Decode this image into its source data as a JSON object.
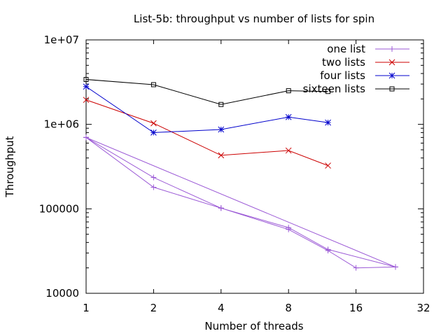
{
  "chart_data": {
    "type": "line",
    "title": "List-5b: throughput vs number of lists for spin",
    "xlabel": "Number of threads",
    "ylabel": "Throughput",
    "x_scale": "log2",
    "y_scale": "log10",
    "xlim": [
      1,
      32
    ],
    "ylim": [
      10000,
      10000000
    ],
    "x_ticks": [
      1,
      2,
      4,
      8,
      16,
      32
    ],
    "x_tick_labels": [
      "1",
      "2",
      "4",
      "8",
      "16",
      "32"
    ],
    "y_ticks": [
      10000,
      100000,
      1000000,
      10000000
    ],
    "y_tick_labels": [
      "10000",
      "100000",
      "1e+06",
      "1e+07"
    ],
    "grid": false,
    "legend_position": "top-right",
    "series": [
      {
        "name": "one list",
        "color": "#9b59d6",
        "marker": "plus",
        "points": [
          [
            1,
            700000
          ],
          [
            2,
            180000
          ],
          [
            4,
            102000
          ],
          [
            8,
            57000
          ],
          [
            12,
            32000
          ],
          [
            16,
            20000
          ],
          [
            24,
            20500
          ],
          [
            1,
            700000
          ],
          [
            2,
            235000
          ],
          [
            4,
            102000
          ],
          [
            8,
            60000
          ],
          [
            12,
            33000
          ],
          [
            24,
            20500
          ],
          [
            1,
            700000
          ]
        ]
      },
      {
        "name": "two lists",
        "color": "#cc0000",
        "marker": "cross",
        "points": [
          [
            1,
            1950000
          ],
          [
            2,
            1030000
          ],
          [
            4,
            430000
          ],
          [
            8,
            490000
          ],
          [
            12,
            325000
          ]
        ]
      },
      {
        "name": "four lists",
        "color": "#0000cc",
        "marker": "star",
        "points": [
          [
            1,
            2800000
          ],
          [
            2,
            800000
          ],
          [
            4,
            870000
          ],
          [
            8,
            1220000
          ],
          [
            12,
            1050000
          ]
        ]
      },
      {
        "name": "sixteen lists",
        "color": "#000000",
        "marker": "square",
        "points": [
          [
            1,
            3400000
          ],
          [
            2,
            2950000
          ],
          [
            4,
            1720000
          ],
          [
            8,
            2500000
          ],
          [
            12,
            2450000
          ]
        ]
      }
    ]
  }
}
